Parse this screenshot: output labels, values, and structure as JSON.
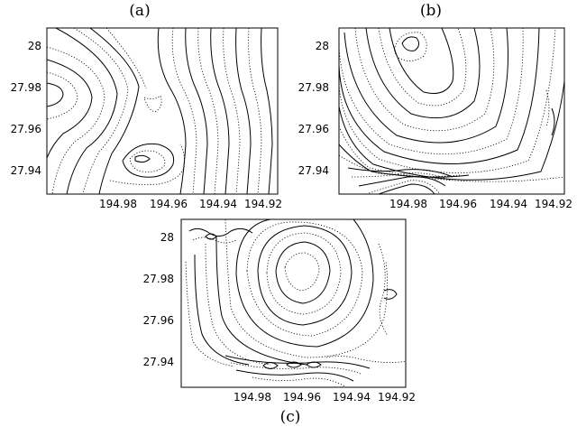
{
  "panels": [
    {
      "id": "a",
      "title": "(a)",
      "x_ticks": [
        "194.98",
        "194.96",
        "194.94",
        "194.92"
      ],
      "y_ticks": [
        "28",
        "27.98",
        "27.96",
        "27.94"
      ]
    },
    {
      "id": "b",
      "title": "(b)",
      "x_ticks": [
        "194.98",
        "194.96",
        "194.94",
        "194.92"
      ],
      "y_ticks": [
        "28",
        "27.98",
        "27.96",
        "27.94"
      ]
    },
    {
      "id": "c",
      "title": "(c)",
      "x_ticks": [
        "194.98",
        "194.96",
        "194.94",
        "194.92"
      ],
      "y_ticks": [
        "28",
        "27.98",
        "27.96",
        "27.94"
      ]
    }
  ]
}
